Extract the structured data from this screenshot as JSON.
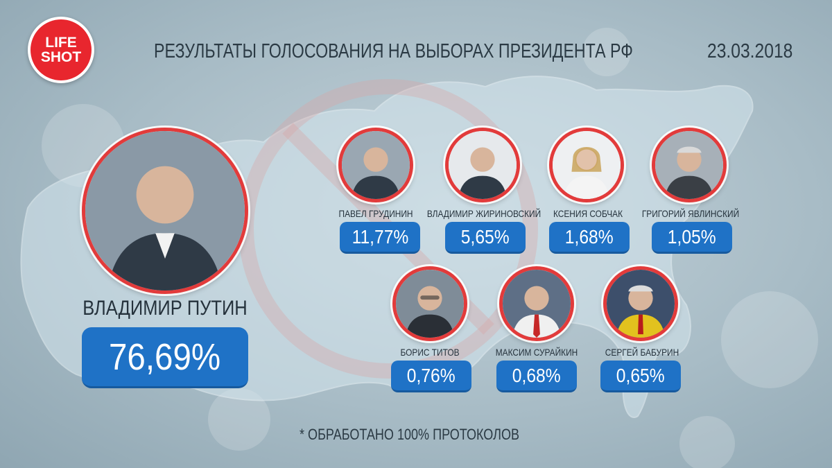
{
  "logo": {
    "line1": "LIFE",
    "line2": "SHOT"
  },
  "header": {
    "title": "РЕЗУЛЬТАТЫ ГОЛОСОВАНИЯ НА ВЫБОРАХ ПРЕЗИДЕНТА РФ",
    "date": "23.03.2018"
  },
  "winner": {
    "name": "ВЛАДИМИР ПУТИН",
    "percent": "76,69%"
  },
  "candidates": [
    {
      "name": "ПАВЕЛ ГРУДИНИН",
      "percent": "11,77%"
    },
    {
      "name": "ВЛАДИМИР ЖИРИНОВСКИЙ",
      "percent": "5,65%"
    },
    {
      "name": "КСЕНИЯ СОБЧАК",
      "percent": "1,68%"
    },
    {
      "name": "ГРИГОРИЙ ЯВЛИНСКИЙ",
      "percent": "1,05%"
    },
    {
      "name": "БОРИС ТИТОВ",
      "percent": "0,76%"
    },
    {
      "name": "МАКСИМ СУРАЙКИН",
      "percent": "0,68%"
    },
    {
      "name": "СЕРГЕЙ БАБУРИН",
      "percent": "0,65%"
    }
  ],
  "footer": {
    "note": "* ОБРАБОТАНО 100% ПРОТОКОЛОВ"
  },
  "colors": {
    "accent": "#e23b3b",
    "badge": "#1f72c6",
    "logo": "#e8262e"
  }
}
